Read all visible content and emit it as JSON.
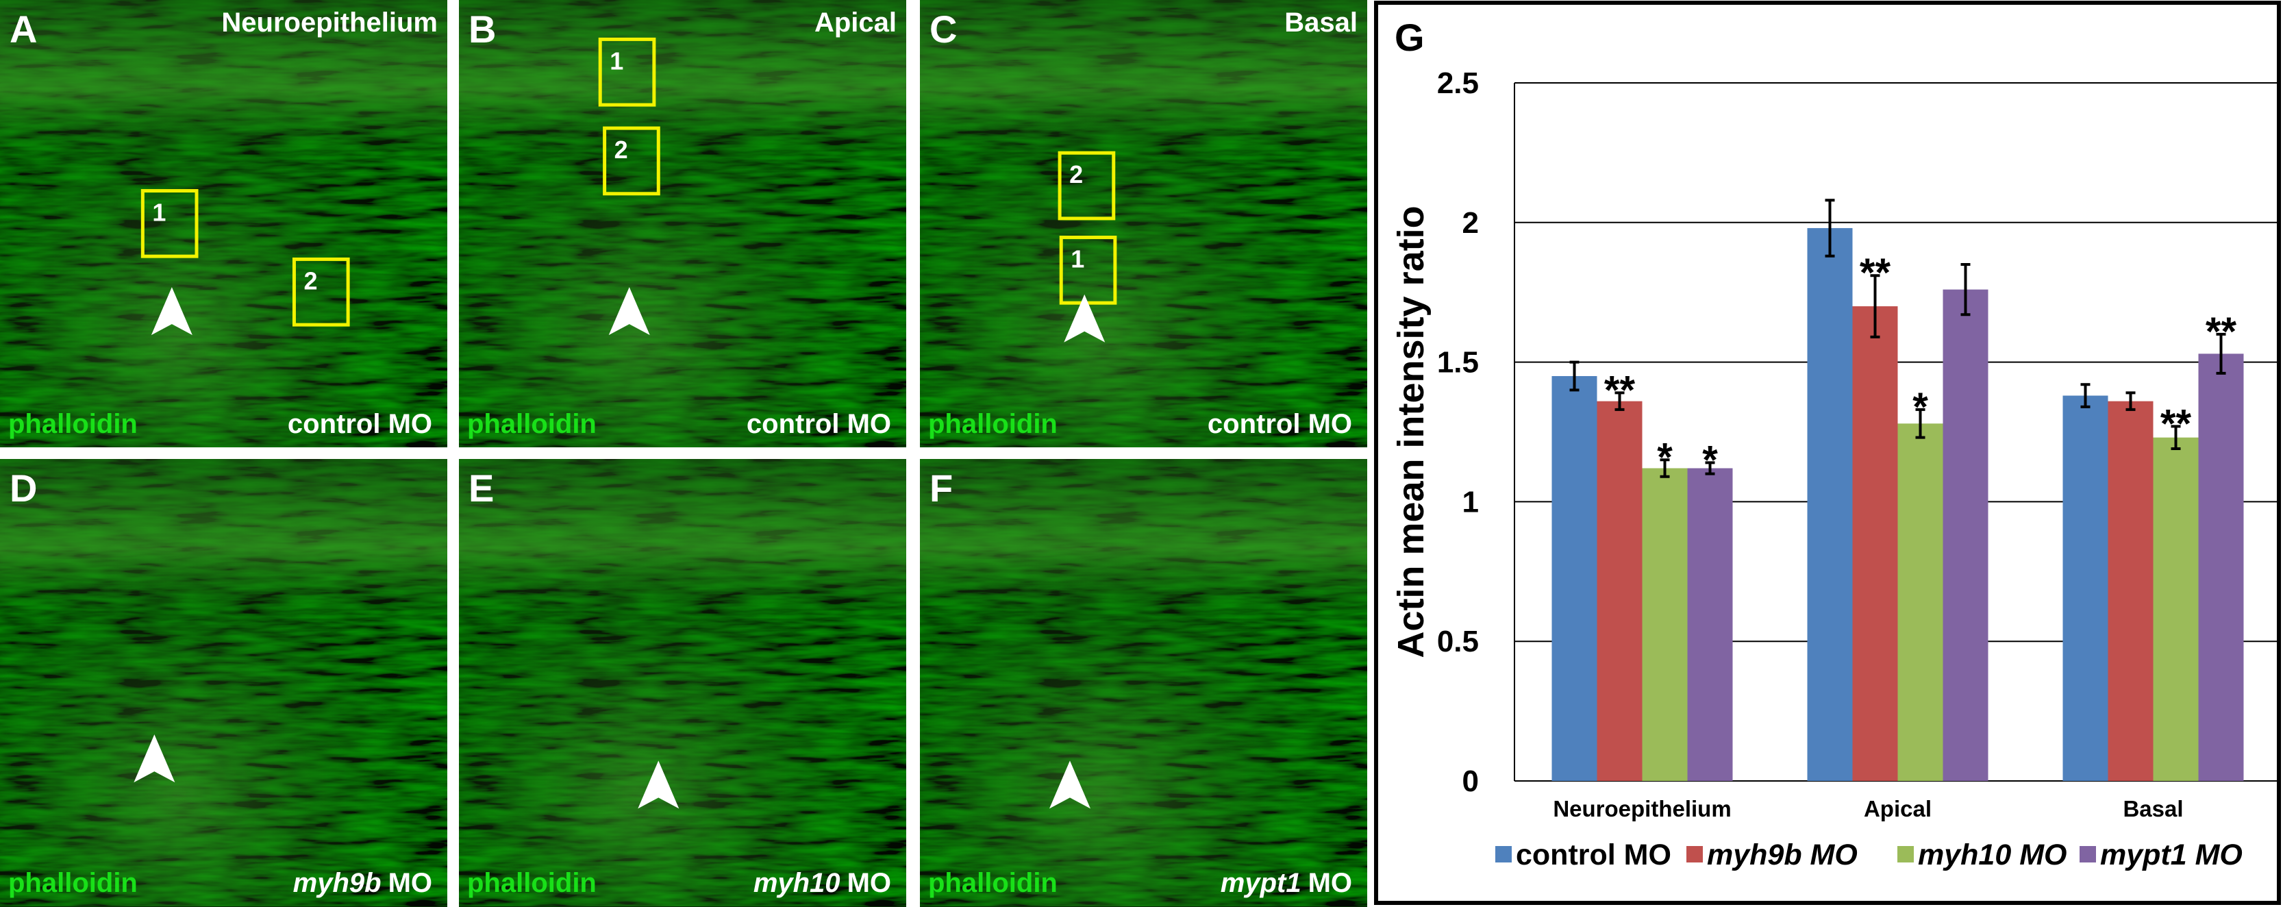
{
  "panels": [
    {
      "letter": "A",
      "region": "Neuroepithelium",
      "stain": "phalloidin",
      "condition": [
        {
          "text": "control MO"
        }
      ],
      "boxes": [
        "1",
        "2"
      ]
    },
    {
      "letter": "B",
      "region": "Apical",
      "stain": "phalloidin",
      "condition": [
        {
          "text": "control MO"
        }
      ],
      "boxes": [
        "1",
        "2"
      ]
    },
    {
      "letter": "C",
      "region": "Basal",
      "stain": "phalloidin",
      "condition": [
        {
          "text": "control MO"
        }
      ],
      "boxes": [
        "2",
        "1"
      ]
    },
    {
      "letter": "D",
      "stain": "phalloidin",
      "condition": [
        {
          "text": "myh9b",
          "italic": true
        },
        {
          "text": "MO"
        }
      ]
    },
    {
      "letter": "E",
      "stain": "phalloidin",
      "condition": [
        {
          "text": "myh10",
          "italic": true
        },
        {
          "text": "MO"
        }
      ]
    },
    {
      "letter": "F",
      "stain": "phalloidin",
      "condition": [
        {
          "text": "mypt1",
          "italic": true
        },
        {
          "text": "MO"
        }
      ]
    }
  ],
  "chart_data": {
    "type": "bar",
    "panel_label": "G",
    "y_label": "Actin mean intensity ratio",
    "categories": [
      "Neuroepithelium",
      "Apical",
      "Basal"
    ],
    "series": [
      {
        "name": "control MO",
        "color": "#4f81bd",
        "values": [
          1.45,
          1.98,
          1.38
        ],
        "errors": [
          0.05,
          0.1,
          0.04
        ],
        "significance": [
          null,
          null,
          null
        ]
      },
      {
        "name": "myh9b MO",
        "color": "#c0504d",
        "italic": true,
        "values": [
          1.36,
          1.7,
          1.36
        ],
        "errors": [
          0.03,
          0.11,
          0.03
        ],
        "significance": [
          "**",
          "**",
          null
        ]
      },
      {
        "name": "myh10 MO",
        "color": "#9bbb59",
        "italic": true,
        "values": [
          1.12,
          1.28,
          1.23
        ],
        "errors": [
          0.03,
          0.05,
          0.04
        ],
        "significance": [
          "*",
          "*",
          "**"
        ]
      },
      {
        "name": "mypt1 MO",
        "color": "#8064a2",
        "italic": true,
        "values": [
          1.12,
          1.76,
          1.53
        ],
        "errors": [
          0.02,
          0.09,
          0.07
        ],
        "significance": [
          "*",
          null,
          "**"
        ]
      }
    ],
    "ylim": [
      0,
      2.5
    ],
    "yticks": [
      0,
      0.5,
      1,
      1.5,
      2,
      2.5
    ],
    "grid": true,
    "legend": "bottom"
  }
}
